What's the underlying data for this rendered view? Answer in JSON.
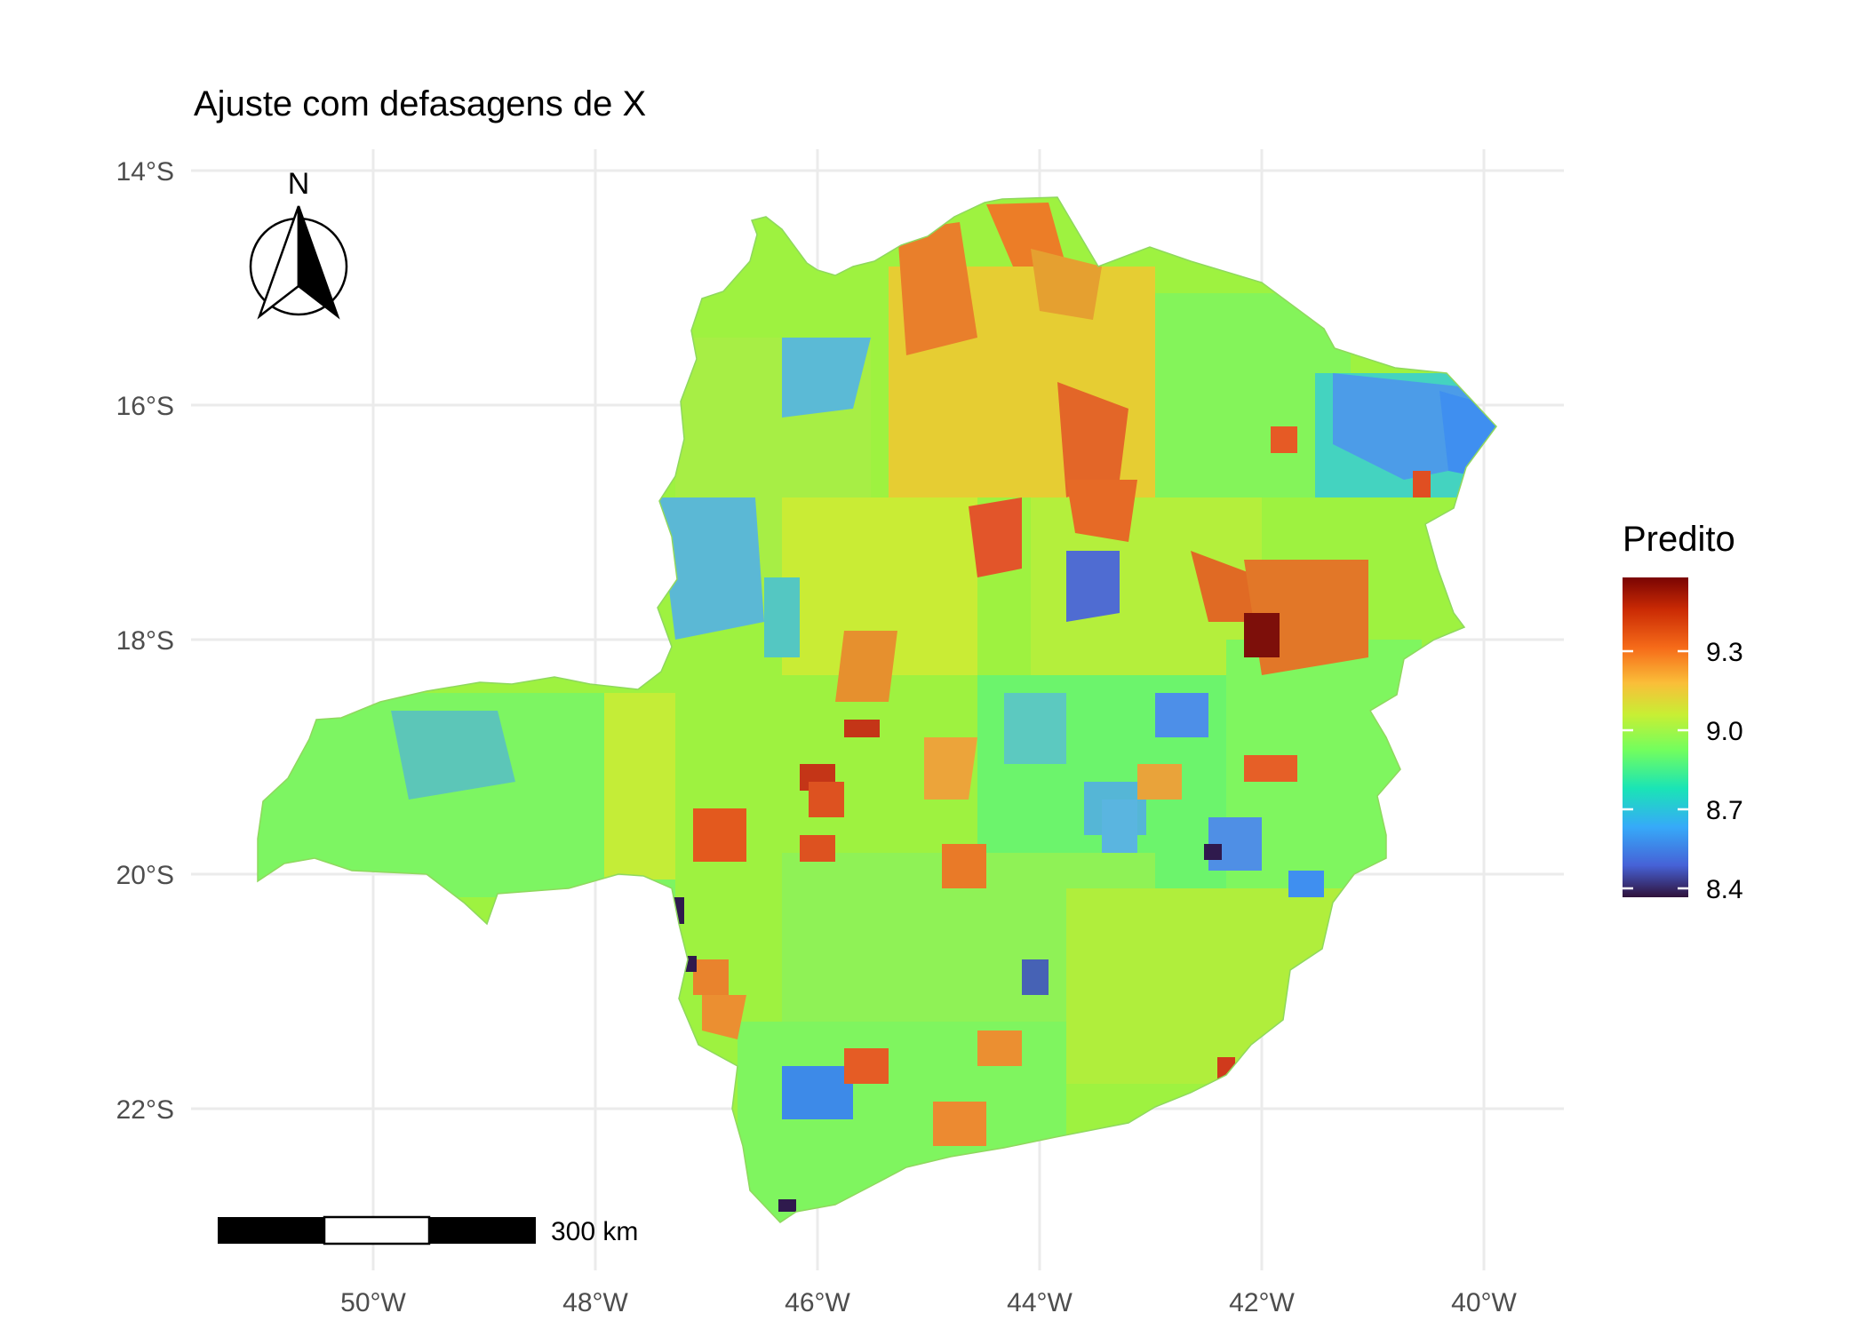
{
  "title": "Ajuste com defasagens de X",
  "map": {
    "x_ticks": [
      "50°W",
      "48°W",
      "46°W",
      "44°W",
      "42°W",
      "40°W"
    ],
    "y_ticks": [
      "14°S",
      "16°S",
      "18°S",
      "20°S",
      "22°S"
    ],
    "north_arrow_label": "N",
    "scale_bar_label": "300 km",
    "fill_variable": "Predito",
    "palette": [
      "#30123b",
      "#4662d7",
      "#36aaf9",
      "#1ae4b6",
      "#72fe5e",
      "#c7ef34",
      "#fabe39",
      "#f66b19",
      "#ca2a04",
      "#7a0403"
    ]
  },
  "legend": {
    "title": "Predito",
    "ticks": [
      "9.3",
      "9.0",
      "8.7",
      "8.4"
    ],
    "range": [
      8.37,
      9.6
    ]
  }
}
